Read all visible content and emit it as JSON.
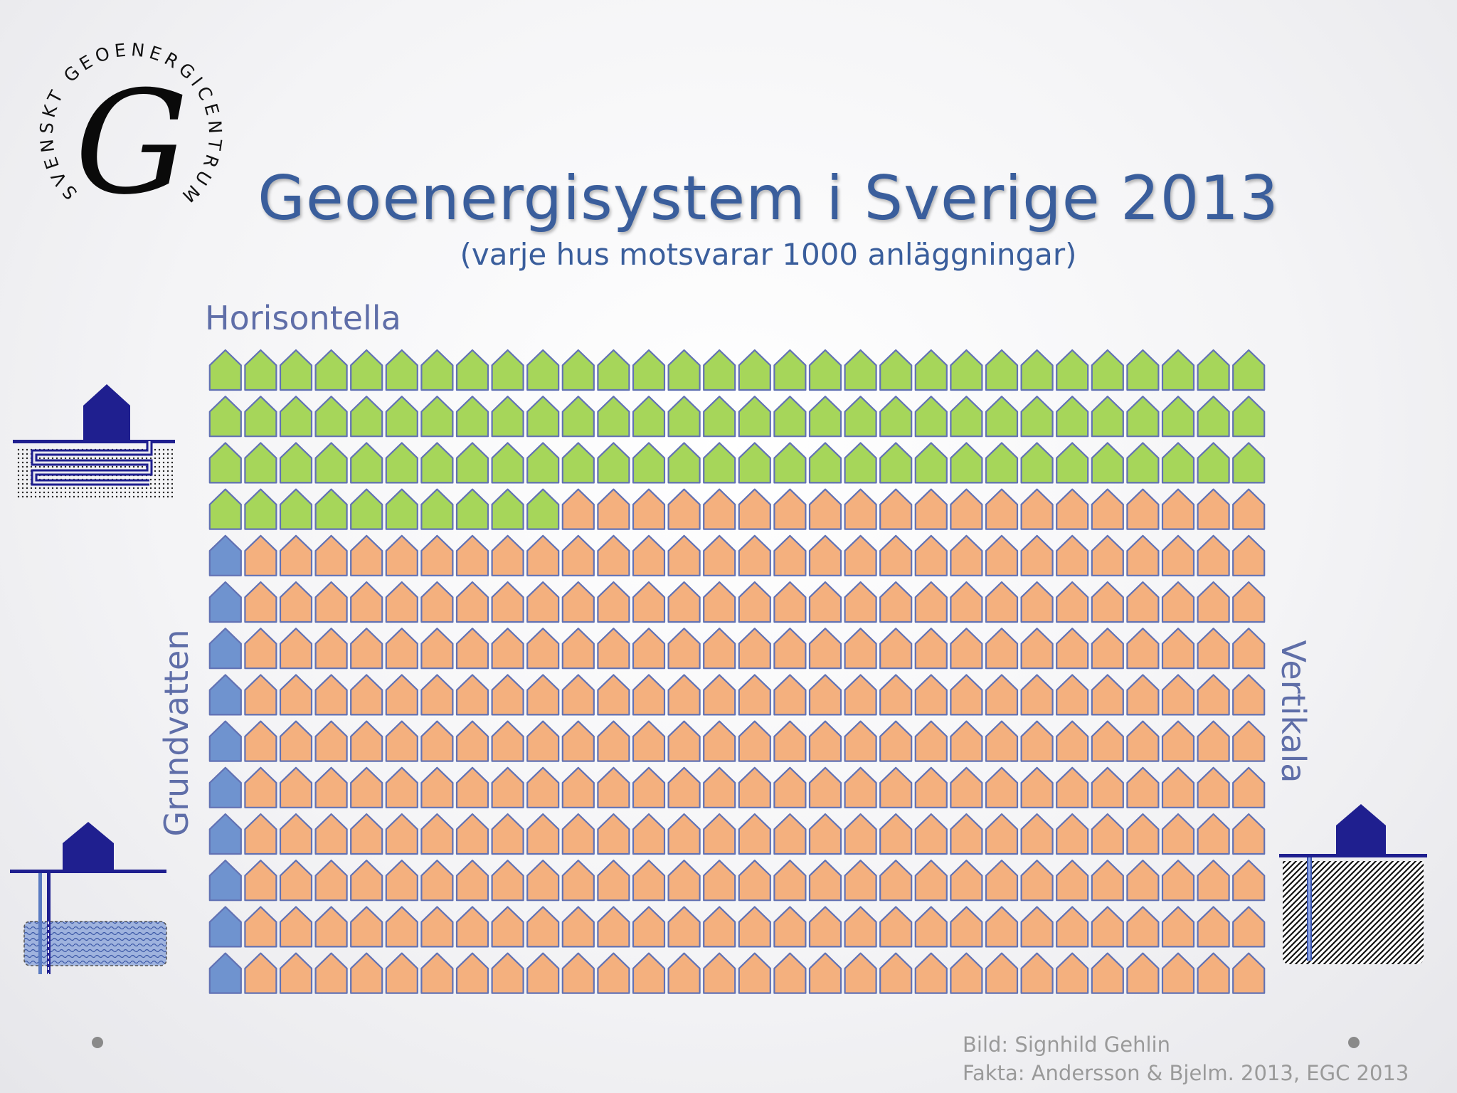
{
  "logo": {
    "ring_text": "SVENSKT GEOENERGICENTRUM",
    "monogram": "G"
  },
  "title": "Geoenergisystem i Sverige 2013",
  "subtitle": "(varje hus motsvarar 1000 anläggningar)",
  "chart_data": {
    "type": "pictogram",
    "unit": "1000 anläggningar per hus",
    "grid": {
      "rows": 14,
      "columns": 30
    },
    "series": [
      {
        "name": "Horisontella",
        "value": 100,
        "color": "#a6d65a"
      },
      {
        "name": "Vertikala",
        "value": 306,
        "color": "#f4b07e"
      },
      {
        "name": "Grundvatten",
        "value": 14,
        "color": "#6f93cf"
      }
    ]
  },
  "colors": {
    "title": "#3a5e9c",
    "house_outline": "#6272b4",
    "illustration": "#1f1f8f"
  },
  "icons": [
    "horizontal-collector-illustration-icon",
    "groundwater-well-illustration-icon",
    "vertical-borehole-illustration-icon"
  ],
  "credits": {
    "image": "Bild: Signhild Gehlin",
    "facts": "Fakta: Andersson & Bjelm. 2013, EGC 2013"
  }
}
